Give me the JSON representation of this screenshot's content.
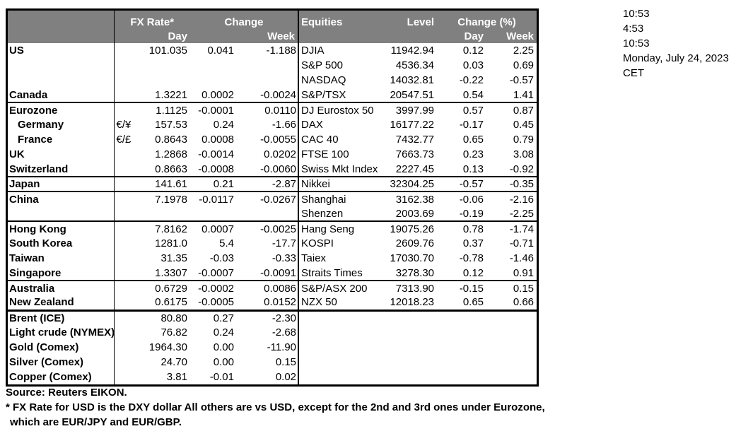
{
  "header": {
    "fx": {
      "rate_label": "FX Rate*",
      "change_label": "Change",
      "day_label": "Day",
      "week_label": "Week"
    },
    "equities": {
      "title": "Equities",
      "level_label": "Level",
      "change_label": "Change (%)",
      "day_label": "Day",
      "week_label": "Week"
    }
  },
  "rows": [
    {
      "label": "US",
      "indent": false,
      "pair": "",
      "rate": "101.035",
      "day": "0.041",
      "week": "-1.188",
      "equity": "DJIA",
      "level": "11942.94",
      "eq_day": "0.12",
      "eq_week": "2.25",
      "sep": "none"
    },
    {
      "label": "",
      "indent": false,
      "pair": "",
      "rate": "",
      "day": "",
      "week": "",
      "equity": "S&P 500",
      "level": "4536.34",
      "eq_day": "0.03",
      "eq_week": "0.69",
      "sep": "none"
    },
    {
      "label": "",
      "indent": false,
      "pair": "",
      "rate": "",
      "day": "",
      "week": "",
      "equity": "NASDAQ",
      "level": "14032.81",
      "eq_day": "-0.22",
      "eq_week": "-0.57",
      "sep": "none"
    },
    {
      "label": "Canada",
      "indent": false,
      "pair": "",
      "rate": "1.3221",
      "day": "0.0002",
      "week": "-0.0024",
      "equity": "S&P/TSX",
      "level": "20547.51",
      "eq_day": "0.54",
      "eq_week": "1.41",
      "sep": "thin"
    },
    {
      "label": "Eurozone",
      "indent": false,
      "pair": "",
      "rate": "1.1125",
      "day": "-0.0001",
      "week": "0.0110",
      "equity": "DJ Eurostox 50",
      "level": "3997.99",
      "eq_day": "0.57",
      "eq_week": "0.87",
      "sep": "none"
    },
    {
      "label": "Germany",
      "indent": true,
      "pair": "€/¥",
      "rate": "157.53",
      "day": "0.24",
      "week": "-1.66",
      "equity": "DAX",
      "level": "16177.22",
      "eq_day": "-0.17",
      "eq_week": "0.45",
      "sep": "none"
    },
    {
      "label": "France",
      "indent": true,
      "pair": "€/£",
      "rate": "0.8643",
      "day": "0.0008",
      "week": "-0.0055",
      "equity": "CAC 40",
      "level": "7432.77",
      "eq_day": "0.65",
      "eq_week": "0.79",
      "sep": "none"
    },
    {
      "label": "UK",
      "indent": false,
      "pair": "",
      "rate": "1.2868",
      "day": "-0.0014",
      "week": "0.0202",
      "equity": "FTSE 100",
      "level": "7663.73",
      "eq_day": "0.23",
      "eq_week": "3.08",
      "sep": "none"
    },
    {
      "label": "Switzerland",
      "indent": false,
      "pair": "",
      "rate": "0.8663",
      "day": "-0.0008",
      "week": "-0.0060",
      "equity": "Swiss Mkt Index",
      "level": "2227.45",
      "eq_day": "0.13",
      "eq_week": "-0.92",
      "sep": "thin"
    },
    {
      "label": "Japan",
      "indent": false,
      "pair": "",
      "rate": "141.61",
      "day": "0.21",
      "week": "-2.87",
      "equity": "Nikkei",
      "level": "32304.25",
      "eq_day": "-0.57",
      "eq_week": "-0.35",
      "sep": "thin"
    },
    {
      "label": "China",
      "indent": false,
      "pair": "",
      "rate": "7.1978",
      "day": "-0.0117",
      "week": "-0.0267",
      "equity": "Shanghai",
      "level": "3162.38",
      "eq_day": "-0.06",
      "eq_week": "-2.16",
      "sep": "none"
    },
    {
      "label": "",
      "indent": false,
      "pair": "",
      "rate": "",
      "day": "",
      "week": "",
      "equity": "Shenzen",
      "level": "2003.69",
      "eq_day": "-0.19",
      "eq_week": "-2.25",
      "sep": "thin"
    },
    {
      "label": "Hong Kong",
      "indent": false,
      "pair": "",
      "rate": "7.8162",
      "day": "0.0007",
      "week": "-0.0025",
      "equity": "Hang Seng",
      "level": "19075.26",
      "eq_day": "0.78",
      "eq_week": "-1.74",
      "sep": "none"
    },
    {
      "label": "South Korea",
      "indent": false,
      "pair": "",
      "rate": "1281.0",
      "day": "5.4",
      "week": "-17.7",
      "equity": "KOSPI",
      "level": "2609.76",
      "eq_day": "0.37",
      "eq_week": "-0.71",
      "sep": "none"
    },
    {
      "label": "Taiwan",
      "indent": false,
      "pair": "",
      "rate": "31.35",
      "day": "-0.03",
      "week": "-0.33",
      "equity": "Taiex",
      "level": "17030.70",
      "eq_day": "-0.78",
      "eq_week": "-1.46",
      "sep": "none"
    },
    {
      "label": "Singapore",
      "indent": false,
      "pair": "",
      "rate": "1.3307",
      "day": "-0.0007",
      "week": "-0.0091",
      "equity": "Straits Times",
      "level": "3278.30",
      "eq_day": "0.12",
      "eq_week": "0.91",
      "sep": "thin"
    },
    {
      "label": "Australia",
      "indent": false,
      "pair": "",
      "rate": "0.6729",
      "day": "-0.0002",
      "week": "0.0086",
      "equity": "S&P/ASX 200",
      "level": "7313.90",
      "eq_day": "-0.15",
      "eq_week": "0.15",
      "sep": "none"
    },
    {
      "label": "New Zealand",
      "indent": false,
      "pair": "",
      "rate": "0.6175",
      "day": "-0.0005",
      "week": "0.0152",
      "equity": "NZX 50",
      "level": "12018.23",
      "eq_day": "0.65",
      "eq_week": "0.66",
      "sep": "thick"
    },
    {
      "label": "Brent (ICE)",
      "indent": false,
      "pair": "",
      "rate": "80.80",
      "day": "0.27",
      "week": "-2.30",
      "equity": "",
      "level": "",
      "eq_day": "",
      "eq_week": "",
      "sep": "none"
    },
    {
      "label": "Light crude (NYMEX)",
      "indent": false,
      "pair": "",
      "rate": "76.82",
      "day": "0.24",
      "week": "-2.68",
      "equity": "",
      "level": "",
      "eq_day": "",
      "eq_week": "",
      "sep": "none"
    },
    {
      "label": "Gold (Comex)",
      "indent": false,
      "pair": "",
      "rate": "1964.30",
      "day": "0.00",
      "week": "-11.90",
      "equity": "",
      "level": "",
      "eq_day": "",
      "eq_week": "",
      "sep": "none"
    },
    {
      "label": "Silver (Comex)",
      "indent": false,
      "pair": "",
      "rate": "24.70",
      "day": "0.00",
      "week": "0.15",
      "equity": "",
      "level": "",
      "eq_day": "",
      "eq_week": "",
      "sep": "none"
    },
    {
      "label": "Copper (Comex)",
      "indent": false,
      "pair": "",
      "rate": "3.81",
      "day": "-0.01",
      "week": "0.02",
      "equity": "",
      "level": "",
      "eq_day": "",
      "eq_week": "",
      "sep": "none"
    }
  ],
  "timestamps": [
    "10:53",
    "4:53",
    "10:53",
    "Monday, July 24, 2023",
    "CET"
  ],
  "footnotes": [
    "Source:  Reuters EIKON.",
    "* FX Rate for USD is the DXY dollar  All others are vs USD, except for the 2nd and 3rd ones under Eurozone,",
    "which are EUR/JPY and EUR/GBP."
  ],
  "colors": {
    "header_bg": "#808080",
    "header_text": "#ffffff",
    "border": "#000000",
    "background": "#ffffff"
  }
}
